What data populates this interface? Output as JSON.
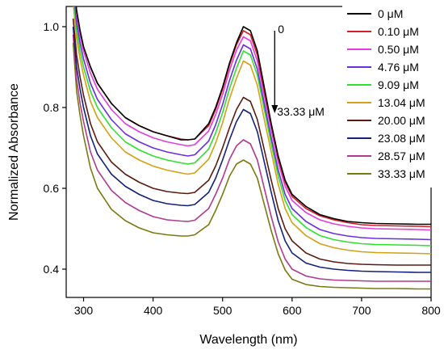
{
  "chart_data": {
    "type": "line",
    "title": "",
    "xlabel": "Wavelength (nm)",
    "ylabel": "Normalized Absorbance",
    "xlim": [
      275,
      800
    ],
    "ylim": [
      0.33,
      1.05
    ],
    "xticks": [
      300,
      400,
      500,
      600,
      700,
      800
    ],
    "xtick_labels": [
      "300",
      "400",
      "500",
      "600",
      "700",
      "800"
    ],
    "yticks": [
      0.4,
      0.6,
      0.8,
      1.0
    ],
    "ytick_labels": [
      "0.4",
      "0.6",
      "0.8",
      "1.0"
    ],
    "grid": false,
    "legend_position": "top-right",
    "x": [
      285,
      290,
      295,
      300,
      310,
      320,
      340,
      360,
      380,
      400,
      420,
      440,
      450,
      460,
      480,
      490,
      500,
      510,
      520,
      530,
      540,
      550,
      560,
      570,
      580,
      590,
      600,
      620,
      640,
      660,
      680,
      700,
      720,
      750,
      780,
      800
    ],
    "series": [
      {
        "name": "0 μM",
        "color": "#000000",
        "values": [
          1.12,
          1.04,
          0.99,
          0.95,
          0.9,
          0.86,
          0.81,
          0.775,
          0.755,
          0.74,
          0.73,
          0.72,
          0.72,
          0.722,
          0.76,
          0.8,
          0.85,
          0.91,
          0.96,
          1.0,
          0.99,
          0.94,
          0.85,
          0.76,
          0.68,
          0.62,
          0.585,
          0.555,
          0.535,
          0.525,
          0.518,
          0.515,
          0.513,
          0.512,
          0.511,
          0.511
        ]
      },
      {
        "name": "0.10 μM",
        "color": "#d61e2a",
        "values": [
          1.12,
          1.04,
          0.99,
          0.95,
          0.9,
          0.86,
          0.81,
          0.775,
          0.755,
          0.74,
          0.73,
          0.722,
          0.72,
          0.722,
          0.755,
          0.795,
          0.845,
          0.905,
          0.955,
          0.99,
          0.98,
          0.93,
          0.84,
          0.755,
          0.675,
          0.615,
          0.58,
          0.55,
          0.532,
          0.522,
          0.515,
          0.51,
          0.508,
          0.507,
          0.506,
          0.505
        ]
      },
      {
        "name": "0.50 μM",
        "color": "#e23de0",
        "values": [
          1.11,
          1.03,
          0.98,
          0.94,
          0.885,
          0.845,
          0.795,
          0.76,
          0.74,
          0.725,
          0.715,
          0.708,
          0.705,
          0.708,
          0.742,
          0.782,
          0.832,
          0.892,
          0.942,
          0.975,
          0.965,
          0.915,
          0.83,
          0.745,
          0.665,
          0.605,
          0.57,
          0.54,
          0.522,
          0.512,
          0.506,
          0.502,
          0.5,
          0.499,
          0.498,
          0.497
        ]
      },
      {
        "name": "4.76 μM",
        "color": "#6a2ee0",
        "values": [
          1.1,
          1.01,
          0.96,
          0.92,
          0.86,
          0.82,
          0.77,
          0.735,
          0.715,
          0.7,
          0.69,
          0.683,
          0.68,
          0.683,
          0.717,
          0.757,
          0.807,
          0.867,
          0.917,
          0.955,
          0.945,
          0.895,
          0.81,
          0.725,
          0.645,
          0.585,
          0.55,
          0.518,
          0.498,
          0.488,
          0.482,
          0.478,
          0.476,
          0.475,
          0.474,
          0.473
        ]
      },
      {
        "name": "9.09 μM",
        "color": "#2fe02f",
        "values": [
          1.08,
          0.99,
          0.94,
          0.9,
          0.84,
          0.8,
          0.75,
          0.715,
          0.695,
          0.68,
          0.67,
          0.663,
          0.66,
          0.663,
          0.697,
          0.737,
          0.787,
          0.847,
          0.897,
          0.94,
          0.93,
          0.88,
          0.795,
          0.71,
          0.63,
          0.57,
          0.535,
          0.503,
          0.483,
          0.473,
          0.467,
          0.463,
          0.461,
          0.46,
          0.459,
          0.458
        ]
      },
      {
        "name": "13.04 μM",
        "color": "#d4a017",
        "values": [
          1.06,
          0.97,
          0.92,
          0.88,
          0.815,
          0.775,
          0.725,
          0.69,
          0.67,
          0.655,
          0.645,
          0.638,
          0.635,
          0.638,
          0.672,
          0.712,
          0.762,
          0.822,
          0.872,
          0.915,
          0.905,
          0.855,
          0.77,
          0.69,
          0.61,
          0.55,
          0.515,
          0.483,
          0.463,
          0.453,
          0.447,
          0.443,
          0.441,
          0.44,
          0.439,
          0.438
        ]
      },
      {
        "name": "20.00 μM",
        "color": "#5c1a10",
        "values": [
          1.02,
          0.93,
          0.875,
          0.83,
          0.76,
          0.715,
          0.665,
          0.635,
          0.615,
          0.6,
          0.592,
          0.588,
          0.587,
          0.59,
          0.62,
          0.655,
          0.7,
          0.75,
          0.795,
          0.825,
          0.815,
          0.77,
          0.695,
          0.62,
          0.55,
          0.5,
          0.47,
          0.44,
          0.425,
          0.418,
          0.414,
          0.412,
          0.411,
          0.41,
          0.41,
          0.41
        ]
      },
      {
        "name": "23.08 μM",
        "color": "#14207a",
        "values": [
          1.0,
          0.9,
          0.845,
          0.8,
          0.73,
          0.685,
          0.635,
          0.605,
          0.585,
          0.57,
          0.562,
          0.558,
          0.557,
          0.56,
          0.59,
          0.625,
          0.67,
          0.72,
          0.765,
          0.795,
          0.785,
          0.74,
          0.665,
          0.59,
          0.52,
          0.47,
          0.44,
          0.415,
          0.405,
          0.4,
          0.397,
          0.395,
          0.394,
          0.393,
          0.392,
          0.392
        ]
      },
      {
        "name": "28.57 μM",
        "color": "#b03a8e",
        "values": [
          0.98,
          0.87,
          0.81,
          0.765,
          0.69,
          0.645,
          0.595,
          0.565,
          0.545,
          0.53,
          0.522,
          0.519,
          0.518,
          0.521,
          0.55,
          0.585,
          0.625,
          0.672,
          0.705,
          0.72,
          0.71,
          0.67,
          0.6,
          0.53,
          0.468,
          0.425,
          0.4,
          0.383,
          0.376,
          0.373,
          0.372,
          0.371,
          0.37,
          0.37,
          0.37,
          0.37
        ]
      },
      {
        "name": "33.33 μM",
        "color": "#7a7a10",
        "values": [
          0.96,
          0.84,
          0.78,
          0.73,
          0.65,
          0.6,
          0.548,
          0.52,
          0.502,
          0.49,
          0.485,
          0.482,
          0.482,
          0.485,
          0.51,
          0.545,
          0.585,
          0.63,
          0.66,
          0.67,
          0.66,
          0.625,
          0.56,
          0.495,
          0.438,
          0.398,
          0.375,
          0.362,
          0.357,
          0.355,
          0.354,
          0.353,
          0.352,
          0.352,
          0.351,
          0.351
        ]
      }
    ],
    "annotations": {
      "arrow_start_label": "0",
      "arrow_end_label": "33.33 μM",
      "arrow_x_nm": 575,
      "arrow_y_start": 0.99,
      "arrow_y_end": 0.79
    }
  }
}
